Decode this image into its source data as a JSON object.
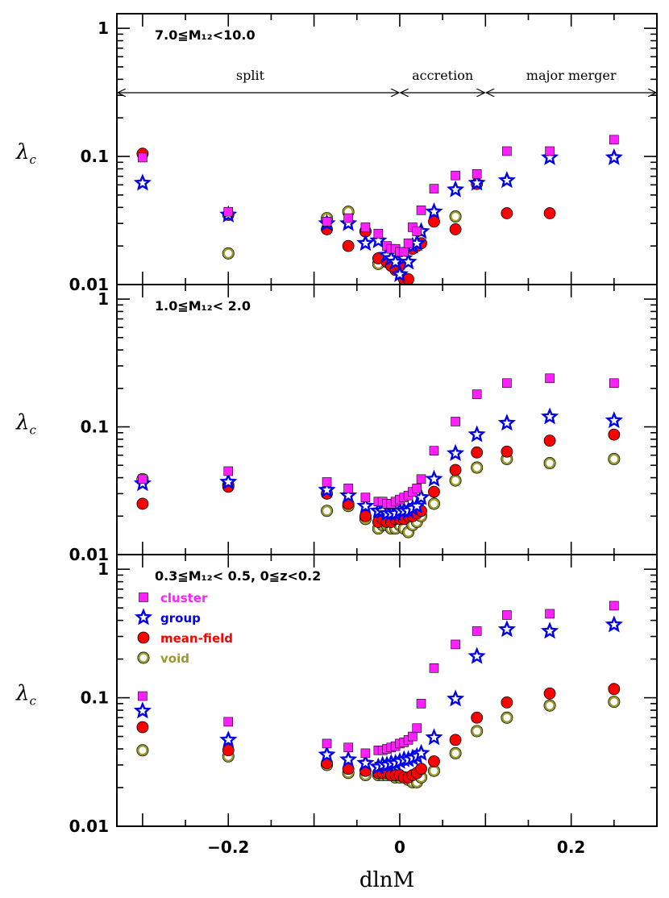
{
  "chart_data": {
    "type": "scatter",
    "xlabel": "dlnM",
    "ylabel_main": "λ",
    "ylabel_sub": "c",
    "xlim": [
      -0.33,
      0.3
    ],
    "ylim": [
      0.01,
      1.3
    ],
    "log_y": true,
    "x_ticks": [
      "−0.2",
      "0",
      "0.2"
    ],
    "y_ticks": [
      "0.01",
      "0.1",
      "1"
    ],
    "colors": {
      "cluster": "#ff1fff",
      "group": "#0000ee",
      "mean_field": "#ff0000",
      "void": "#9a9a2a"
    },
    "legend": [
      {
        "key": "cluster",
        "label": "cluster",
        "marker": "square",
        "color": "#ff1fff"
      },
      {
        "key": "group",
        "label": "group",
        "marker": "star",
        "color": "#0000ee"
      },
      {
        "key": "mean_field",
        "label": "mean-field",
        "marker": "filled-circle",
        "color": "#ff0000"
      },
      {
        "key": "void",
        "label": "void",
        "marker": "open-circle",
        "color": "#9a9a2a"
      }
    ],
    "panels": [
      {
        "annotation": "7.0≦M₁₂<10.0",
        "regions": {
          "split": "split",
          "accretion": "accretion",
          "major": "major merger",
          "boundaries": [
            -0.33,
            0.0,
            0.1,
            0.3
          ]
        },
        "series": [
          {
            "key": "cluster",
            "x": [
              -0.3,
              -0.2,
              -0.085,
              -0.06,
              -0.04,
              -0.025,
              -0.015,
              -0.01,
              -0.005,
              0.0,
              0.005,
              0.01,
              0.015,
              0.02,
              0.025,
              0.04,
              0.065,
              0.09,
              0.125,
              0.175,
              0.25
            ],
            "y": [
              0.098,
              0.037,
              0.031,
              0.033,
              0.028,
              0.025,
              0.02,
              0.019,
              0.019,
              0.018,
              0.018,
              0.021,
              0.028,
              0.026,
              0.038,
              0.056,
              0.071,
              0.073,
              0.11,
              0.11,
              0.135
            ]
          },
          {
            "key": "group",
            "x": [
              -0.3,
              -0.2,
              -0.085,
              -0.06,
              -0.04,
              -0.025,
              -0.015,
              -0.01,
              -0.005,
              0.0,
              0.005,
              0.01,
              0.015,
              0.02,
              0.025,
              0.04,
              0.065,
              0.09,
              0.125,
              0.175,
              0.25
            ],
            "y": [
              0.062,
              0.035,
              0.03,
              0.03,
              0.021,
              0.022,
              0.017,
              0.016,
              0.015,
              0.012,
              0.016,
              0.015,
              0.02,
              0.021,
              0.026,
              0.037,
              0.055,
              0.062,
              0.065,
              0.098,
              0.098
            ]
          },
          {
            "key": "mean_field",
            "x": [
              -0.3,
              -0.2,
              -0.085,
              -0.06,
              -0.04,
              -0.025,
              -0.015,
              -0.01,
              -0.005,
              0.0,
              0.005,
              0.01,
              0.015,
              0.02,
              0.025,
              0.04,
              0.065,
              0.09,
              0.125,
              0.175,
              0.25
            ],
            "y": [
              0.105,
              0.035,
              0.027,
              0.02,
              0.026,
              0.016,
              0.015,
              0.014,
              0.013,
              0.014,
              0.011,
              0.011,
              0.019,
              0.02,
              0.021,
              0.031,
              0.027,
              0.061,
              0.036,
              0.036,
              null
            ]
          },
          {
            "key": "void",
            "x": [
              -0.3,
              -0.2,
              -0.085,
              -0.06,
              -0.04,
              -0.025,
              -0.015,
              -0.01,
              -0.005,
              0.0,
              0.005,
              0.01,
              0.015,
              0.02,
              0.025,
              0.04,
              0.065,
              0.09,
              0.125,
              0.175,
              0.25
            ],
            "y": [
              null,
              0.0175,
              0.033,
              0.037,
              0.026,
              0.0145,
              null,
              null,
              null,
              null,
              null,
              null,
              null,
              null,
              null,
              null,
              0.034,
              null,
              null,
              null,
              null
            ]
          }
        ]
      },
      {
        "annotation": "1.0≦M₁₂< 2.0",
        "series": [
          {
            "key": "cluster",
            "x": [
              -0.3,
              -0.2,
              -0.085,
              -0.06,
              -0.04,
              -0.025,
              -0.02,
              -0.015,
              -0.01,
              -0.005,
              0.0,
              0.005,
              0.01,
              0.015,
              0.02,
              0.025,
              0.04,
              0.065,
              0.09,
              0.125,
              0.175,
              0.25
            ],
            "y": [
              0.039,
              0.045,
              0.037,
              0.033,
              0.028,
              0.026,
              0.026,
              0.025,
              0.025,
              0.026,
              0.027,
              0.028,
              0.029,
              0.031,
              0.033,
              0.039,
              0.065,
              0.11,
              0.18,
              0.22,
              0.24,
              0.22
            ]
          },
          {
            "key": "group",
            "x": [
              -0.3,
              -0.2,
              -0.085,
              -0.06,
              -0.04,
              -0.025,
              -0.02,
              -0.015,
              -0.01,
              -0.005,
              0.0,
              0.005,
              0.01,
              0.015,
              0.02,
              0.025,
              0.04,
              0.065,
              0.09,
              0.125,
              0.175,
              0.25
            ],
            "y": [
              0.036,
              0.037,
              0.032,
              0.029,
              0.024,
              0.022,
              0.022,
              0.021,
              0.021,
              0.021,
              0.022,
              0.022,
              0.022,
              0.023,
              0.024,
              0.028,
              0.039,
              0.062,
              0.087,
              0.107,
              0.12,
              0.112
            ]
          },
          {
            "key": "mean_field",
            "x": [
              -0.3,
              -0.2,
              -0.085,
              -0.06,
              -0.04,
              -0.025,
              -0.02,
              -0.015,
              -0.01,
              -0.005,
              0.0,
              0.005,
              0.01,
              0.015,
              0.02,
              0.025,
              0.04,
              0.065,
              0.09,
              0.125,
              0.175,
              0.25
            ],
            "y": [
              0.025,
              0.034,
              0.03,
              0.025,
              0.02,
              0.018,
              0.019,
              0.018,
              0.018,
              0.019,
              0.019,
              0.019,
              0.02,
              0.02,
              0.021,
              0.022,
              0.031,
              0.046,
              0.063,
              0.064,
              0.078,
              0.087
            ]
          },
          {
            "key": "void",
            "x": [
              -0.3,
              -0.2,
              -0.085,
              -0.06,
              -0.04,
              -0.025,
              -0.02,
              -0.015,
              -0.01,
              -0.005,
              0.0,
              0.005,
              0.01,
              0.015,
              0.02,
              0.025,
              0.04,
              0.065,
              0.09,
              0.125,
              0.175,
              0.25
            ],
            "y": [
              0.039,
              0.035,
              0.022,
              0.024,
              0.019,
              0.016,
              0.017,
              0.017,
              0.016,
              0.016,
              0.017,
              0.016,
              0.015,
              0.017,
              0.018,
              0.02,
              0.025,
              0.038,
              0.048,
              0.056,
              0.052,
              0.056
            ]
          }
        ]
      },
      {
        "annotation": "0.3≦M₁₂< 0.5, 0≦z<0.2",
        "series": [
          {
            "key": "cluster",
            "x": [
              -0.3,
              -0.2,
              -0.085,
              -0.06,
              -0.04,
              -0.025,
              -0.02,
              -0.015,
              -0.01,
              -0.005,
              0.0,
              0.005,
              0.01,
              0.015,
              0.02,
              0.025,
              0.04,
              0.065,
              0.09,
              0.125,
              0.175,
              0.25
            ],
            "y": [
              0.103,
              0.065,
              0.044,
              0.041,
              0.037,
              0.039,
              0.039,
              0.04,
              0.041,
              0.042,
              0.044,
              0.045,
              0.047,
              0.05,
              0.058,
              0.09,
              0.17,
              0.26,
              0.33,
              0.44,
              0.45,
              0.52
            ]
          },
          {
            "key": "group",
            "x": [
              -0.3,
              -0.2,
              -0.085,
              -0.06,
              -0.04,
              -0.025,
              -0.02,
              -0.015,
              -0.01,
              -0.005,
              0.0,
              0.005,
              0.01,
              0.015,
              0.02,
              0.025,
              0.04,
              0.065,
              0.09,
              0.125,
              0.175,
              0.25
            ],
            "y": [
              0.079,
              0.047,
              0.036,
              0.033,
              0.031,
              0.029,
              0.03,
              0.03,
              0.031,
              0.031,
              0.032,
              0.033,
              0.033,
              0.034,
              0.035,
              0.037,
              0.049,
              0.098,
              0.21,
              0.34,
              0.33,
              0.37
            ]
          },
          {
            "key": "mean_field",
            "x": [
              -0.3,
              -0.2,
              -0.085,
              -0.06,
              -0.04,
              -0.025,
              -0.02,
              -0.015,
              -0.01,
              -0.005,
              0.0,
              0.005,
              0.01,
              0.015,
              0.02,
              0.025,
              0.04,
              0.065,
              0.09,
              0.125,
              0.175,
              0.25
            ],
            "y": [
              0.059,
              0.039,
              0.031,
              0.028,
              0.027,
              0.026,
              0.026,
              0.026,
              0.025,
              0.025,
              0.025,
              0.024,
              0.024,
              0.025,
              0.026,
              0.028,
              0.032,
              0.047,
              0.07,
              0.092,
              0.108,
              0.117
            ]
          },
          {
            "key": "void",
            "x": [
              -0.3,
              -0.2,
              -0.085,
              -0.06,
              -0.04,
              -0.025,
              -0.02,
              -0.015,
              -0.01,
              -0.005,
              0.0,
              0.005,
              0.01,
              0.015,
              0.02,
              0.025,
              0.04,
              0.065,
              0.09,
              0.125,
              0.175,
              0.25
            ],
            "y": [
              0.039,
              0.035,
              0.03,
              0.026,
              0.025,
              0.025,
              0.025,
              0.025,
              0.025,
              0.024,
              0.024,
              0.024,
              0.023,
              0.022,
              0.022,
              0.024,
              0.027,
              0.037,
              0.055,
              0.07,
              0.087,
              0.093
            ]
          }
        ]
      }
    ]
  }
}
